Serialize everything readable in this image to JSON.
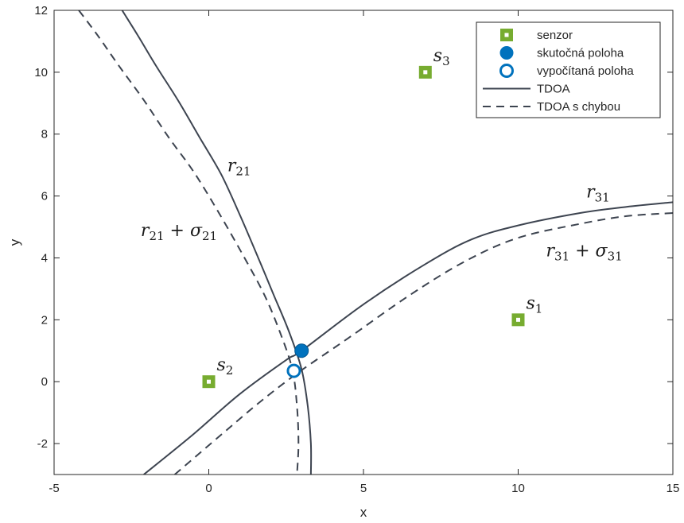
{
  "chart_data": {
    "type": "line",
    "xlabel": "x",
    "ylabel": "y",
    "xlim": [
      -5,
      15
    ],
    "ylim": [
      -3,
      12
    ],
    "xticks": [
      -5,
      0,
      5,
      10,
      15
    ],
    "yticks": [
      -2,
      0,
      2,
      4,
      6,
      8,
      10,
      12
    ],
    "grid": false,
    "legend_position": "top-right",
    "colors": {
      "sensor": "#77ac30",
      "position": "#0072bd",
      "curve": "#3d4450",
      "axis": "#262626"
    },
    "legend": [
      {
        "label": "senzor",
        "marker": "square"
      },
      {
        "label": "skutočná poloha",
        "marker": "filled-circle"
      },
      {
        "label": "vypočítaná poloha",
        "marker": "open-circle"
      },
      {
        "label": "TDOA",
        "marker": "solid-line"
      },
      {
        "label": "TDOA s chybou",
        "marker": "dashed-line"
      }
    ],
    "sensors": [
      {
        "label": "s",
        "sub": "1",
        "x": 10,
        "y": 2
      },
      {
        "label": "s",
        "sub": "2",
        "x": 0,
        "y": 0
      },
      {
        "label": "s",
        "sub": "3",
        "x": 7,
        "y": 10
      }
    ],
    "true_position": {
      "x": 3,
      "y": 1
    },
    "estimated_position": {
      "x": 2.75,
      "y": 0.35
    },
    "series": [
      {
        "id": "tdoa21",
        "style": "solid",
        "points": [
          [
            -2.8,
            12
          ],
          [
            -2.3,
            11.2
          ],
          [
            -1.7,
            10.2
          ],
          [
            -1.0,
            9.1
          ],
          [
            -0.3,
            7.9
          ],
          [
            0.4,
            6.7
          ],
          [
            1.0,
            5.4
          ],
          [
            1.6,
            4.0
          ],
          [
            2.1,
            2.8
          ],
          [
            2.6,
            1.6
          ],
          [
            3.0,
            0.4
          ],
          [
            3.2,
            -0.8
          ],
          [
            3.3,
            -2.0
          ],
          [
            3.3,
            -3
          ]
        ]
      },
      {
        "id": "tdoa21_err",
        "style": "dashed",
        "points": [
          [
            -4.2,
            12
          ],
          [
            -3.6,
            11.2
          ],
          [
            -2.9,
            10.2
          ],
          [
            -2.1,
            9.1
          ],
          [
            -1.3,
            7.9
          ],
          [
            -0.5,
            6.8
          ],
          [
            0.3,
            5.5
          ],
          [
            1.1,
            4.1
          ],
          [
            1.8,
            2.8
          ],
          [
            2.3,
            1.6
          ],
          [
            2.7,
            0.4
          ],
          [
            2.85,
            -0.8
          ],
          [
            2.9,
            -2.0
          ],
          [
            2.85,
            -3
          ]
        ]
      },
      {
        "id": "tdoa31",
        "style": "solid",
        "points": [
          [
            -2.1,
            -3
          ],
          [
            -0.5,
            -1.7
          ],
          [
            1.0,
            -0.4
          ],
          [
            2.5,
            0.7
          ],
          [
            3.0,
            1.0
          ],
          [
            5.0,
            2.5
          ],
          [
            7.0,
            3.8
          ],
          [
            8.5,
            4.6
          ],
          [
            10.0,
            5.05
          ],
          [
            12.0,
            5.45
          ],
          [
            13.5,
            5.65
          ],
          [
            15.0,
            5.8
          ]
        ]
      },
      {
        "id": "tdoa31_err",
        "style": "dashed",
        "points": [
          [
            -1.1,
            -3
          ],
          [
            0.3,
            -1.8
          ],
          [
            1.6,
            -0.7
          ],
          [
            2.9,
            0.3
          ],
          [
            4.5,
            1.4
          ],
          [
            6.5,
            2.8
          ],
          [
            8.3,
            3.9
          ],
          [
            10.0,
            4.65
          ],
          [
            12.0,
            5.1
          ],
          [
            13.5,
            5.35
          ],
          [
            15.0,
            5.45
          ]
        ]
      }
    ],
    "annotations": [
      {
        "id": "r21",
        "main": "r",
        "sub": "21",
        "x": 0.6,
        "y": 6.8
      },
      {
        "id": "r21s",
        "main": "r",
        "sub": "21",
        "plus": "+",
        "main2": "σ",
        "sub2": "21",
        "x": -2.2,
        "y": 4.7
      },
      {
        "id": "r31",
        "main": "r",
        "sub": "31",
        "x": 12.2,
        "y": 5.95
      },
      {
        "id": "r31s",
        "main": "r",
        "sub": "31",
        "plus": "+",
        "main2": "σ",
        "sub2": "31",
        "x": 10.9,
        "y": 4.05
      }
    ]
  }
}
